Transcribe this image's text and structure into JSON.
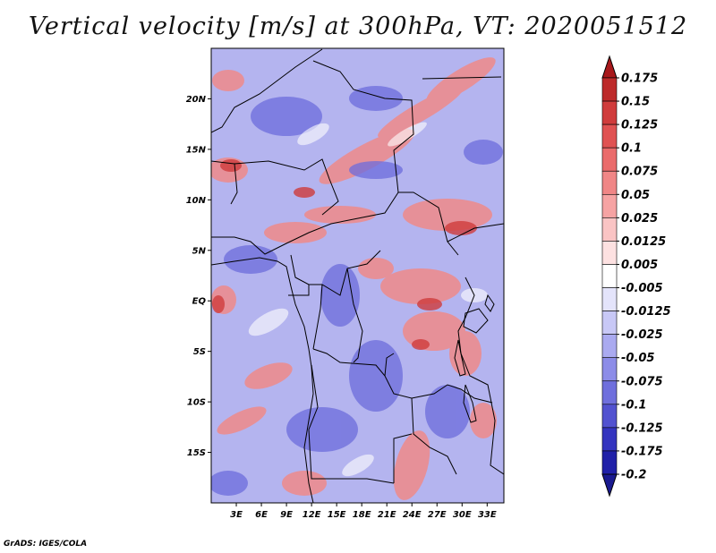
{
  "title": "Vertical velocity [m/s] at 300hPa, VT: 2020051512",
  "credit": "GrADS: IGES/COLA",
  "map": {
    "lon_range": [
      0,
      35
    ],
    "lat_range": [
      -20,
      25
    ],
    "lat_ticks": [
      {
        "lat": 20,
        "label": "20N"
      },
      {
        "lat": 15,
        "label": "15N"
      },
      {
        "lat": 10,
        "label": "10N"
      },
      {
        "lat": 5,
        "label": "5N"
      },
      {
        "lat": 0,
        "label": "EQ"
      },
      {
        "lat": -5,
        "label": "5S"
      },
      {
        "lat": -10,
        "label": "10S"
      },
      {
        "lat": -15,
        "label": "15S"
      }
    ],
    "lon_ticks": [
      {
        "lon": 3,
        "label": "3E"
      },
      {
        "lon": 6,
        "label": "6E"
      },
      {
        "lon": 9,
        "label": "9E"
      },
      {
        "lon": 12,
        "label": "12E"
      },
      {
        "lon": 15,
        "label": "15E"
      },
      {
        "lon": 18,
        "label": "18E"
      },
      {
        "lon": 21,
        "label": "21E"
      },
      {
        "lon": 24,
        "label": "24E"
      },
      {
        "lon": 27,
        "label": "27E"
      },
      {
        "lon": 30,
        "label": "30E"
      },
      {
        "lon": 33,
        "label": "33E"
      }
    ]
  },
  "colorbar": {
    "levels": [
      {
        "label": "0.175",
        "color": "#a8181b"
      },
      {
        "label": "0.15",
        "color": "#bd2a2a"
      },
      {
        "label": "0.125",
        "color": "#d03c3c"
      },
      {
        "label": "0.1",
        "color": "#e05252"
      },
      {
        "label": "0.075",
        "color": "#ea6b6b"
      },
      {
        "label": "0.05",
        "color": "#f08686"
      },
      {
        "label": "0.025",
        "color": "#f6a3a3"
      },
      {
        "label": "0.0125",
        "color": "#fac4c4"
      },
      {
        "label": "0.005",
        "color": "#fde1e1"
      },
      {
        "label": "-0.005",
        "color": "#ffffff"
      },
      {
        "label": "-0.0125",
        "color": "#e4e4fb"
      },
      {
        "label": "-0.025",
        "color": "#c8c8f6"
      },
      {
        "label": "-0.05",
        "color": "#aaaaf0"
      },
      {
        "label": "-0.075",
        "color": "#8c8ce8"
      },
      {
        "label": "-0.1",
        "color": "#6f6fdd"
      },
      {
        "label": "-0.125",
        "color": "#5252d0"
      },
      {
        "label": "-0.175",
        "color": "#3434bf"
      },
      {
        "label": "-0.2",
        "color": "#2020a8"
      }
    ],
    "top_cap_color": "#a8181b",
    "bottom_cap_color": "#1a1a90"
  }
}
